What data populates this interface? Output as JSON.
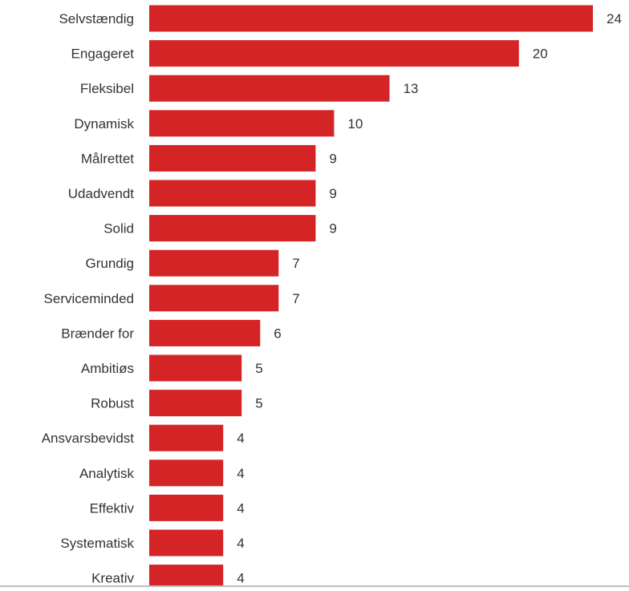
{
  "chart_data": {
    "type": "bar",
    "orientation": "horizontal",
    "categories": [
      "Selvstændig",
      "Engageret",
      "Fleksibel",
      "Dynamisk",
      "Målrettet",
      "Udadvendt",
      "Solid",
      "Grundig",
      "Serviceminded",
      "Brænder for",
      "Ambitiøs",
      "Robust",
      "Ansvarsbevidst",
      "Analytisk",
      "Effektiv",
      "Systematisk",
      "Kreativ"
    ],
    "values": [
      24,
      20,
      13,
      10,
      9,
      9,
      9,
      7,
      7,
      6,
      5,
      5,
      4,
      4,
      4,
      4,
      4
    ],
    "data_labels": [
      "24",
      "20",
      "13",
      "10",
      "9",
      "9",
      "9",
      "7",
      "7",
      "6",
      "5",
      "5",
      "4",
      "4",
      "4",
      "4",
      "4"
    ],
    "xlim": [
      0,
      24
    ],
    "grid": false,
    "bar_color": "#d42426",
    "label_color": "#333333"
  }
}
